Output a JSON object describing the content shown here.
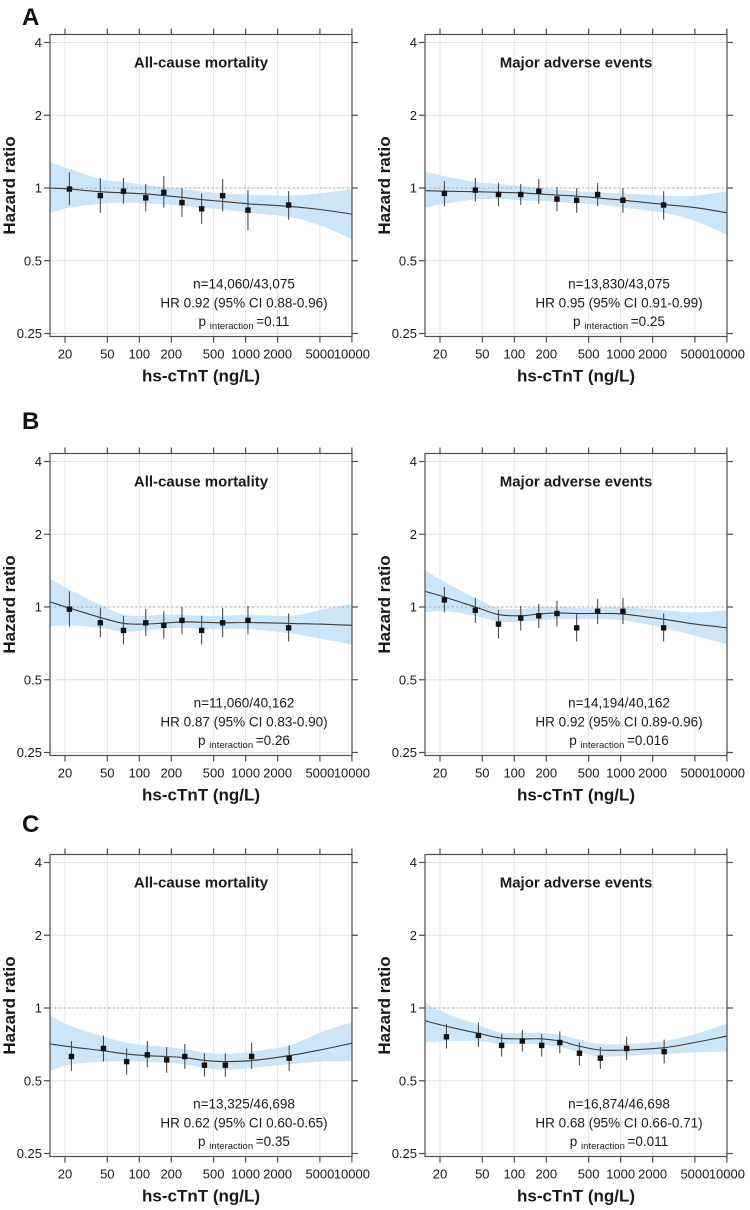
{
  "figure_title": "Hazard ratio spline panels",
  "colors": {
    "band": "#bfe0f5",
    "curve": "#3c3c3c",
    "error_bar": "#4d4d4d",
    "point": "#111111",
    "grid": "#e4e4e4",
    "ref_line": "#9a9a9a",
    "axis": "#4d4d4d",
    "text": "#1a1a1a"
  },
  "chart_data": {
    "type": "line",
    "layout": "3 rows x 2 columns",
    "panel_letters": [
      "A",
      "B",
      "C"
    ],
    "xlabel": "hs-cTnT (ng/L)",
    "ylabel": "Hazard ratio",
    "x_scale": "log",
    "y_scale": "log",
    "x_ticks": [
      20,
      50,
      100,
      200,
      500,
      1000,
      2000,
      5000,
      10000
    ],
    "y_ticks": [
      4,
      2,
      1,
      0.5,
      0.25
    ],
    "xlim": [
      14.5,
      10000
    ],
    "ylim": [
      0.25,
      4
    ],
    "ref_line_y": 1,
    "grid": true,
    "charts": [
      {
        "panel": "A",
        "title": "All-cause mortality",
        "annotation": {
          "n": "n=14,060/43,075",
          "hr": "HR 0.92 (95% CI 0.88-0.96)",
          "p": "p",
          "p_sub": "interaction",
          "p_val": "=0.11"
        },
        "points": {
          "x": [
            22,
            43,
            71,
            115,
            170,
            252,
            386,
            608,
            1052,
            2540
          ],
          "y": [
            0.99,
            0.93,
            0.97,
            0.91,
            0.96,
            0.87,
            0.82,
            0.93,
            0.81,
            0.85
          ],
          "lo": [
            0.85,
            0.79,
            0.86,
            0.8,
            0.83,
            0.76,
            0.71,
            0.8,
            0.67,
            0.74
          ],
          "hi": [
            1.16,
            1.1,
            1.1,
            1.04,
            1.12,
            1.0,
            0.95,
            1.09,
            0.98,
            0.97
          ]
        },
        "curve": {
          "x": [
            14.5,
            22,
            43,
            71,
            115,
            170,
            252,
            386,
            608,
            1052,
            2540,
            5000,
            10000
          ],
          "y": [
            1.0,
            0.99,
            0.965,
            0.955,
            0.945,
            0.93,
            0.915,
            0.895,
            0.88,
            0.86,
            0.84,
            0.815,
            0.78
          ]
        },
        "band": {
          "x": [
            14.5,
            22,
            43,
            71,
            115,
            170,
            252,
            386,
            608,
            1052,
            2540,
            5000,
            10000
          ],
          "hi": [
            1.28,
            1.2,
            1.09,
            1.06,
            1.03,
            1.01,
            0.99,
            0.97,
            0.95,
            0.94,
            0.93,
            0.95,
            0.99
          ],
          "lo": [
            0.79,
            0.83,
            0.86,
            0.87,
            0.86,
            0.855,
            0.845,
            0.83,
            0.815,
            0.79,
            0.76,
            0.7,
            0.615
          ]
        }
      },
      {
        "panel": "A",
        "title": "Major adverse events",
        "annotation": {
          "n": "n=13,830/43,075",
          "hr": "HR 0.95 (95% CI 0.91-0.99)",
          "p": "p",
          "p_sub": "interaction",
          "p_val": "=0.25"
        },
        "points": {
          "x": [
            22,
            43,
            71,
            115,
            170,
            252,
            386,
            608,
            1052,
            2540
          ],
          "y": [
            0.95,
            0.98,
            0.94,
            0.94,
            0.97,
            0.9,
            0.89,
            0.94,
            0.89,
            0.85
          ],
          "lo": [
            0.84,
            0.88,
            0.84,
            0.85,
            0.86,
            0.8,
            0.79,
            0.84,
            0.79,
            0.74
          ],
          "hi": [
            1.07,
            1.1,
            1.05,
            1.04,
            1.09,
            1.01,
            1.0,
            1.05,
            1.0,
            0.97
          ]
        },
        "curve": {
          "x": [
            14.5,
            22,
            43,
            71,
            115,
            170,
            252,
            386,
            608,
            1052,
            2540,
            5000,
            10000
          ],
          "y": [
            0.975,
            0.97,
            0.965,
            0.96,
            0.955,
            0.945,
            0.935,
            0.925,
            0.91,
            0.89,
            0.855,
            0.83,
            0.79
          ]
        },
        "band": {
          "x": [
            14.5,
            22,
            43,
            71,
            115,
            170,
            252,
            386,
            608,
            1052,
            2540,
            5000,
            10000
          ],
          "hi": [
            1.17,
            1.12,
            1.06,
            1.04,
            1.02,
            1.0,
            0.985,
            0.97,
            0.96,
            0.95,
            0.93,
            0.93,
            0.97
          ],
          "lo": [
            0.83,
            0.86,
            0.895,
            0.9,
            0.89,
            0.885,
            0.875,
            0.865,
            0.855,
            0.83,
            0.79,
            0.73,
            0.64
          ]
        }
      },
      {
        "panel": "B",
        "title": "All-cause mortality",
        "annotation": {
          "n": "n=11,060/40,162",
          "hr": "HR 0.87 (95% CI 0.83-0.90)",
          "p": "p",
          "p_sub": "interaction",
          "p_val": "=0.26"
        },
        "points": {
          "x": [
            22,
            43,
            71,
            115,
            170,
            252,
            386,
            608,
            1052,
            2540
          ],
          "y": [
            0.98,
            0.86,
            0.8,
            0.86,
            0.84,
            0.88,
            0.8,
            0.86,
            0.88,
            0.82
          ],
          "lo": [
            0.83,
            0.75,
            0.7,
            0.76,
            0.74,
            0.77,
            0.7,
            0.75,
            0.77,
            0.72
          ],
          "hi": [
            1.16,
            0.99,
            0.92,
            0.98,
            0.96,
            1.0,
            0.92,
            0.99,
            1.01,
            0.94
          ]
        },
        "curve": {
          "x": [
            14.5,
            22,
            43,
            71,
            115,
            170,
            252,
            386,
            608,
            1052,
            2540,
            5000,
            10000
          ],
          "y": [
            1.05,
            0.99,
            0.905,
            0.855,
            0.85,
            0.858,
            0.868,
            0.865,
            0.86,
            0.863,
            0.855,
            0.85,
            0.84
          ]
        },
        "band": {
          "x": [
            14.5,
            22,
            43,
            71,
            115,
            170,
            252,
            386,
            608,
            1052,
            2540,
            5000,
            10000
          ],
          "hi": [
            1.31,
            1.18,
            1.02,
            0.93,
            0.92,
            0.93,
            0.93,
            0.92,
            0.92,
            0.93,
            0.92,
            0.97,
            1.03
          ],
          "lo": [
            0.83,
            0.84,
            0.82,
            0.79,
            0.8,
            0.81,
            0.82,
            0.81,
            0.81,
            0.81,
            0.78,
            0.74,
            0.7
          ]
        }
      },
      {
        "panel": "B",
        "title": "Major adverse events",
        "annotation": {
          "n": "n=14,194/40,162",
          "hr": "HR 0.92 (95% CI 0.89-0.96)",
          "p": "p",
          "p_sub": "interaction",
          "p_val": "=0.016"
        },
        "points": {
          "x": [
            22,
            43,
            71,
            115,
            170,
            252,
            386,
            608,
            1052,
            2540
          ],
          "y": [
            1.07,
            0.97,
            0.85,
            0.9,
            0.92,
            0.94,
            0.82,
            0.96,
            0.96,
            0.82
          ],
          "lo": [
            0.95,
            0.86,
            0.74,
            0.8,
            0.82,
            0.83,
            0.72,
            0.85,
            0.85,
            0.72
          ],
          "hi": [
            1.21,
            1.09,
            0.97,
            1.01,
            1.03,
            1.06,
            0.94,
            1.08,
            1.09,
            0.94
          ]
        },
        "curve": {
          "x": [
            14.5,
            22,
            43,
            71,
            115,
            170,
            252,
            386,
            608,
            1052,
            2540,
            5000,
            10000
          ],
          "y": [
            1.16,
            1.1,
            1.0,
            0.93,
            0.92,
            0.935,
            0.945,
            0.94,
            0.94,
            0.935,
            0.89,
            0.85,
            0.82
          ]
        },
        "band": {
          "x": [
            14.5,
            22,
            43,
            71,
            115,
            170,
            252,
            386,
            608,
            1052,
            2540,
            5000,
            10000
          ],
          "hi": [
            1.42,
            1.27,
            1.09,
            0.99,
            0.98,
            1.0,
            1.0,
            0.99,
            0.99,
            1.0,
            0.97,
            0.95,
            0.97
          ],
          "lo": [
            0.95,
            0.96,
            0.92,
            0.87,
            0.87,
            0.88,
            0.89,
            0.89,
            0.89,
            0.88,
            0.82,
            0.76,
            0.7
          ]
        }
      },
      {
        "panel": "C",
        "title": "All-cause mortality",
        "annotation": {
          "n": "n=13,325/46,698",
          "hr": "HR 0.62 (95% CI 0.60-0.65)",
          "p": "p",
          "p_sub": "interaction",
          "p_val": "=0.35"
        },
        "points": {
          "x": [
            23,
            46,
            76,
            119,
            181,
            268,
            410,
            645,
            1140,
            2570
          ],
          "y": [
            0.63,
            0.68,
            0.6,
            0.64,
            0.61,
            0.63,
            0.58,
            0.58,
            0.63,
            0.62
          ],
          "lo": [
            0.55,
            0.6,
            0.53,
            0.57,
            0.54,
            0.56,
            0.52,
            0.52,
            0.56,
            0.55
          ],
          "hi": [
            0.73,
            0.77,
            0.68,
            0.73,
            0.69,
            0.71,
            0.65,
            0.65,
            0.72,
            0.7
          ]
        },
        "curve": {
          "x": [
            14.5,
            23,
            46,
            76,
            119,
            181,
            268,
            410,
            645,
            1140,
            2570,
            5000,
            10000
          ],
          "y": [
            0.71,
            0.69,
            0.665,
            0.645,
            0.635,
            0.63,
            0.623,
            0.607,
            0.6,
            0.606,
            0.635,
            0.67,
            0.715
          ]
        },
        "band": {
          "x": [
            14.5,
            23,
            46,
            76,
            119,
            181,
            268,
            410,
            645,
            1140,
            2570,
            5000,
            10000
          ],
          "hi": [
            0.93,
            0.84,
            0.76,
            0.72,
            0.7,
            0.69,
            0.675,
            0.655,
            0.645,
            0.66,
            0.7,
            0.79,
            0.875
          ],
          "lo": [
            0.55,
            0.585,
            0.6,
            0.6,
            0.6,
            0.595,
            0.585,
            0.565,
            0.555,
            0.565,
            0.585,
            0.6,
            0.6
          ]
        }
      },
      {
        "panel": "C",
        "title": "Major adverse events",
        "annotation": {
          "n": "n=16,874/46,698",
          "hr": "HR 0.68 (95% CI 0.66-0.71)",
          "p": "p",
          "p_sub": "interaction",
          "p_val": "=0.011"
        },
        "points": {
          "x": [
            23,
            46,
            76,
            119,
            181,
            268,
            410,
            645,
            1140,
            2570
          ],
          "y": [
            0.76,
            0.77,
            0.7,
            0.73,
            0.7,
            0.72,
            0.65,
            0.62,
            0.68,
            0.66
          ],
          "lo": [
            0.68,
            0.69,
            0.63,
            0.66,
            0.63,
            0.65,
            0.58,
            0.56,
            0.61,
            0.59
          ],
          "hi": [
            0.86,
            0.87,
            0.78,
            0.81,
            0.78,
            0.8,
            0.72,
            0.69,
            0.76,
            0.74
          ]
        },
        "curve": {
          "x": [
            14.5,
            23,
            46,
            76,
            119,
            181,
            268,
            410,
            645,
            1140,
            2570,
            5000,
            10000
          ],
          "y": [
            0.885,
            0.84,
            0.785,
            0.75,
            0.745,
            0.745,
            0.73,
            0.695,
            0.67,
            0.67,
            0.685,
            0.72,
            0.765
          ]
        },
        "band": {
          "x": [
            14.5,
            23,
            46,
            76,
            119,
            181,
            268,
            410,
            645,
            1140,
            2570,
            5000,
            10000
          ],
          "hi": [
            1.05,
            0.95,
            0.85,
            0.79,
            0.79,
            0.79,
            0.775,
            0.74,
            0.71,
            0.71,
            0.73,
            0.78,
            0.86
          ],
          "lo": [
            0.72,
            0.73,
            0.73,
            0.71,
            0.71,
            0.705,
            0.69,
            0.655,
            0.63,
            0.635,
            0.645,
            0.655,
            0.66
          ]
        }
      }
    ]
  }
}
